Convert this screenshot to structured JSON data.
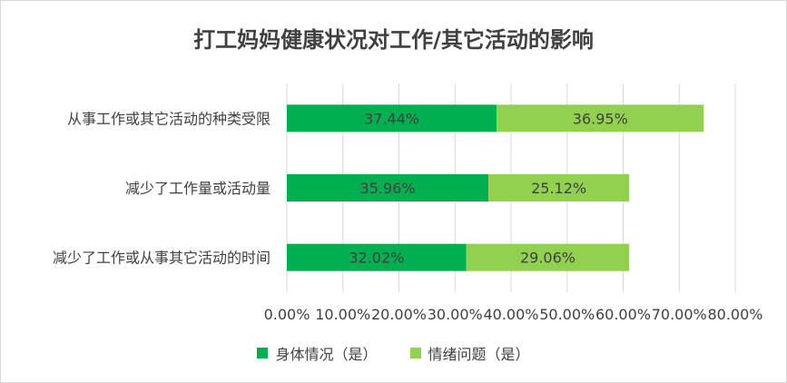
{
  "colors": {
    "series1": "#00b050",
    "series2": "#92d050",
    "grid": "#d9d9d9",
    "text": "#404040"
  },
  "chart_data": {
    "type": "bar",
    "orientation": "horizontal",
    "stacked": true,
    "title": "打工妈妈健康状况对工作/其它活动的影响",
    "categories": [
      "从事工作或其它活动的种类受限",
      "减少了工作量或活动量",
      "减少了工作或从事其它活动的时间"
    ],
    "series": [
      {
        "name": "身体情况（是）",
        "values": [
          37.44,
          35.96,
          32.02
        ],
        "labels": [
          "37.44%",
          "35.96%",
          "32.02%"
        ]
      },
      {
        "name": "情绪问题（是）",
        "values": [
          36.95,
          25.12,
          29.06
        ],
        "labels": [
          "36.95%",
          "25.12%",
          "29.06%"
        ]
      }
    ],
    "xlim": [
      0,
      80
    ],
    "xticks": [
      "0.00%",
      "10.00%",
      "20.00%",
      "30.00%",
      "40.00%",
      "50.00%",
      "60.00%",
      "70.00%",
      "80.00%"
    ],
    "grid": true,
    "legend_position": "bottom"
  }
}
